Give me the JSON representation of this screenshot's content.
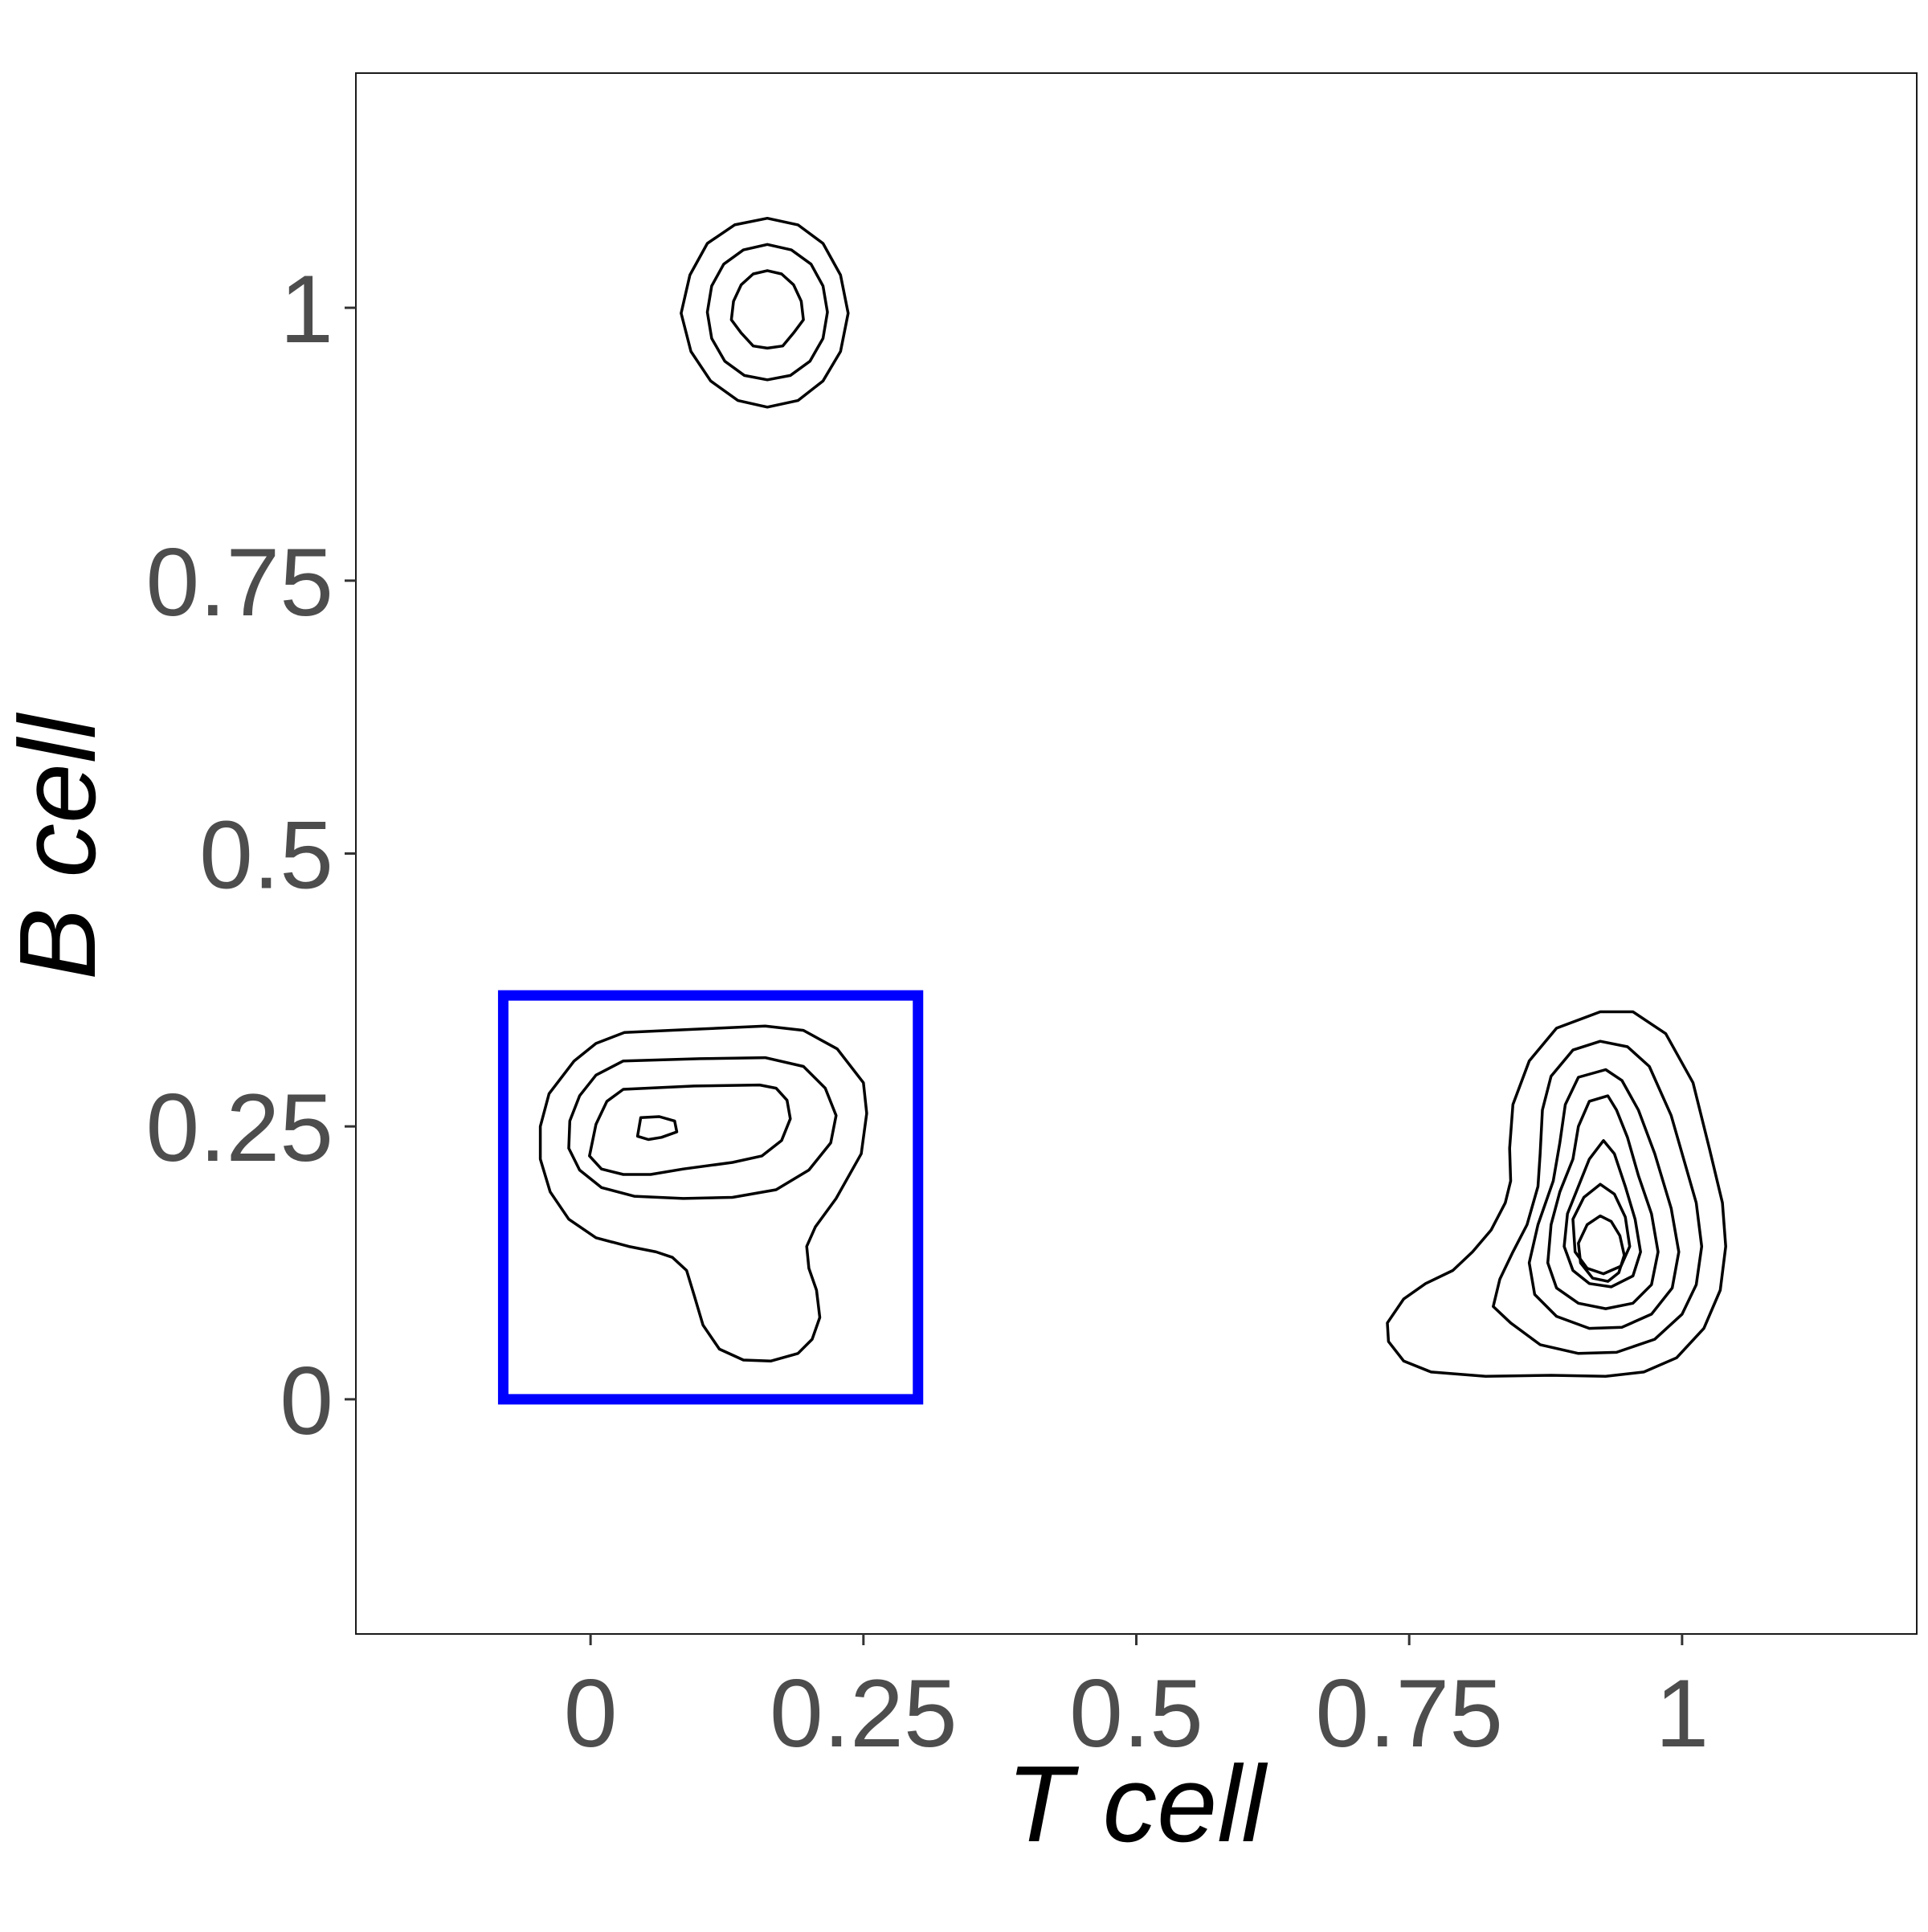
{
  "chart_data": {
    "type": "contour",
    "xlabel": "T cell",
    "ylabel": "B cell",
    "xlim": [
      -0.215,
      1.215
    ],
    "ylim": [
      -0.215,
      1.215
    ],
    "x_ticks": [
      {
        "value": 0,
        "label": "0"
      },
      {
        "value": 0.25,
        "label": "0.25"
      },
      {
        "value": 0.5,
        "label": "0.5"
      },
      {
        "value": 0.75,
        "label": "0.75"
      },
      {
        "value": 1,
        "label": "1"
      }
    ],
    "y_ticks": [
      {
        "value": 0,
        "label": "0"
      },
      {
        "value": 0.25,
        "label": "0.25"
      },
      {
        "value": 0.5,
        "label": "0.5"
      },
      {
        "value": 0.75,
        "label": "0.75"
      },
      {
        "value": 1,
        "label": "1"
      }
    ],
    "grid": false,
    "colors": {
      "contour": "#000000",
      "gate": "#0000ff",
      "tick_text": "#4d4d4d"
    },
    "gate": {
      "x": [
        -0.08,
        0.3
      ],
      "y": [
        0,
        0.37
      ]
    },
    "clusters": [
      {
        "id": "top",
        "contours": [
          [
            [
              0.162,
              1.082
            ],
            [
              0.132,
              1.076
            ],
            [
              0.107,
              1.059
            ],
            [
              0.091,
              1.03
            ],
            [
              0.083,
              0.995
            ],
            [
              0.092,
              0.96
            ],
            [
              0.11,
              0.933
            ],
            [
              0.135,
              0.915
            ],
            [
              0.162,
              0.909
            ],
            [
              0.19,
              0.915
            ],
            [
              0.213,
              0.933
            ],
            [
              0.229,
              0.96
            ],
            [
              0.236,
              0.995
            ],
            [
              0.229,
              1.03
            ],
            [
              0.213,
              1.059
            ],
            [
              0.19,
              1.076
            ],
            [
              0.162,
              1.082
            ]
          ],
          [
            [
              0.162,
              1.058
            ],
            [
              0.14,
              1.053
            ],
            [
              0.122,
              1.04
            ],
            [
              0.111,
              1.02
            ],
            [
              0.107,
              0.996
            ],
            [
              0.111,
              0.972
            ],
            [
              0.123,
              0.951
            ],
            [
              0.141,
              0.938
            ],
            [
              0.162,
              0.934
            ],
            [
              0.183,
              0.938
            ],
            [
              0.201,
              0.951
            ],
            [
              0.213,
              0.972
            ],
            [
              0.217,
              0.996
            ],
            [
              0.213,
              1.02
            ],
            [
              0.202,
              1.04
            ],
            [
              0.184,
              1.053
            ],
            [
              0.162,
              1.058
            ]
          ],
          [
            [
              0.162,
              1.034
            ],
            [
              0.149,
              1.031
            ],
            [
              0.138,
              1.021
            ],
            [
              0.131,
              1.006
            ],
            [
              0.129,
              0.989
            ],
            [
              0.138,
              0.977
            ],
            [
              0.149,
              0.965
            ],
            [
              0.162,
              0.963
            ],
            [
              0.176,
              0.965
            ],
            [
              0.186,
              0.977
            ],
            [
              0.195,
              0.989
            ],
            [
              0.193,
              1.006
            ],
            [
              0.186,
              1.021
            ],
            [
              0.175,
              1.031
            ],
            [
              0.162,
              1.034
            ]
          ]
        ]
      },
      {
        "id": "gated",
        "contours": [
          [
            [
              0.031,
              0.336
            ],
            [
              0.095,
              0.339
            ],
            [
              0.16,
              0.342
            ],
            [
              0.195,
              0.338
            ],
            [
              0.226,
              0.321
            ],
            [
              0.25,
              0.29
            ],
            [
              0.253,
              0.262
            ],
            [
              0.248,
              0.225
            ],
            [
              0.225,
              0.184
            ],
            [
              0.206,
              0.158
            ],
            [
              0.198,
              0.14
            ],
            [
              0.2,
              0.12
            ],
            [
              0.207,
              0.1
            ],
            [
              0.21,
              0.075
            ],
            [
              0.203,
              0.055
            ],
            [
              0.19,
              0.042
            ],
            [
              0.165,
              0.035
            ],
            [
              0.14,
              0.036
            ],
            [
              0.118,
              0.046
            ],
            [
              0.103,
              0.068
            ],
            [
              0.095,
              0.095
            ],
            [
              0.088,
              0.118
            ],
            [
              0.075,
              0.13
            ],
            [
              0.06,
              0.135
            ],
            [
              0.035,
              0.14
            ],
            [
              0.005,
              0.148
            ],
            [
              -0.02,
              0.165
            ],
            [
              -0.037,
              0.19
            ],
            [
              -0.046,
              0.22
            ],
            [
              -0.046,
              0.25
            ],
            [
              -0.038,
              0.28
            ],
            [
              -0.015,
              0.31
            ],
            [
              0.005,
              0.326
            ],
            [
              0.031,
              0.336
            ]
          ],
          [
            [
              0.03,
              0.31
            ],
            [
              0.1,
              0.312
            ],
            [
              0.16,
              0.313
            ],
            [
              0.195,
              0.305
            ],
            [
              0.215,
              0.285
            ],
            [
              0.225,
              0.26
            ],
            [
              0.22,
              0.235
            ],
            [
              0.2,
              0.21
            ],
            [
              0.17,
              0.192
            ],
            [
              0.13,
              0.185
            ],
            [
              0.085,
              0.184
            ],
            [
              0.04,
              0.186
            ],
            [
              0.01,
              0.194
            ],
            [
              -0.01,
              0.21
            ],
            [
              -0.02,
              0.23
            ],
            [
              -0.019,
              0.255
            ],
            [
              -0.01,
              0.278
            ],
            [
              0.005,
              0.297
            ],
            [
              0.03,
              0.31
            ]
          ],
          [
            [
              0.03,
              0.284
            ],
            [
              0.095,
              0.287
            ],
            [
              0.155,
              0.288
            ],
            [
              0.17,
              0.285
            ],
            [
              0.18,
              0.274
            ],
            [
              0.183,
              0.257
            ],
            [
              0.175,
              0.237
            ],
            [
              0.157,
              0.223
            ],
            [
              0.13,
              0.217
            ],
            [
              0.085,
              0.211
            ],
            [
              0.055,
              0.206
            ],
            [
              0.03,
              0.206
            ],
            [
              0.01,
              0.211
            ],
            [
              -0.001,
              0.223
            ],
            [
              0.005,
              0.252
            ],
            [
              0.015,
              0.273
            ],
            [
              0.03,
              0.284
            ]
          ],
          [
            [
              0.046,
              0.258
            ],
            [
              0.063,
              0.259
            ],
            [
              0.077,
              0.255
            ],
            [
              0.079,
              0.245
            ],
            [
              0.065,
              0.24
            ],
            [
              0.053,
              0.238
            ],
            [
              0.043,
              0.241
            ],
            [
              0.046,
              0.258
            ]
          ]
        ]
      },
      {
        "id": "right",
        "contours": [
          [
            [
              0.925,
              0.355
            ],
            [
              0.885,
              0.34
            ],
            [
              0.86,
              0.31
            ],
            [
              0.845,
              0.27
            ],
            [
              0.842,
              0.23
            ],
            [
              0.843,
              0.2
            ],
            [
              0.838,
              0.18
            ],
            [
              0.825,
              0.155
            ],
            [
              0.808,
              0.135
            ],
            [
              0.79,
              0.118
            ],
            [
              0.765,
              0.106
            ],
            [
              0.745,
              0.092
            ],
            [
              0.73,
              0.07
            ],
            [
              0.731,
              0.053
            ],
            [
              0.745,
              0.035
            ],
            [
              0.77,
              0.025
            ],
            [
              0.82,
              0.021
            ],
            [
              0.88,
              0.022
            ],
            [
              0.93,
              0.021
            ],
            [
              0.965,
              0.025
            ],
            [
              0.995,
              0.038
            ],
            [
              1.02,
              0.065
            ],
            [
              1.035,
              0.1
            ],
            [
              1.04,
              0.14
            ],
            [
              1.037,
              0.18
            ],
            [
              1.025,
              0.23
            ],
            [
              1.01,
              0.29
            ],
            [
              0.985,
              0.335
            ],
            [
              0.955,
              0.355
            ],
            [
              0.925,
              0.355
            ]
          ],
          [
            [
              0.925,
              0.328
            ],
            [
              0.9,
              0.32
            ],
            [
              0.88,
              0.296
            ],
            [
              0.872,
              0.265
            ],
            [
              0.87,
              0.225
            ],
            [
              0.868,
              0.195
            ],
            [
              0.858,
              0.16
            ],
            [
              0.845,
              0.135
            ],
            [
              0.833,
              0.11
            ],
            [
              0.827,
              0.085
            ],
            [
              0.843,
              0.07
            ],
            [
              0.87,
              0.05
            ],
            [
              0.905,
              0.042
            ],
            [
              0.94,
              0.043
            ],
            [
              0.975,
              0.055
            ],
            [
              1.0,
              0.078
            ],
            [
              1.013,
              0.105
            ],
            [
              1.018,
              0.14
            ],
            [
              1.013,
              0.18
            ],
            [
              0.99,
              0.26
            ],
            [
              0.97,
              0.305
            ],
            [
              0.95,
              0.323
            ],
            [
              0.925,
              0.328
            ]
          ],
          [
            [
              0.93,
              0.302
            ],
            [
              0.905,
              0.295
            ],
            [
              0.893,
              0.27
            ],
            [
              0.888,
              0.235
            ],
            [
              0.882,
              0.2
            ],
            [
              0.868,
              0.16
            ],
            [
              0.86,
              0.125
            ],
            [
              0.865,
              0.096
            ],
            [
              0.885,
              0.076
            ],
            [
              0.915,
              0.065
            ],
            [
              0.945,
              0.066
            ],
            [
              0.972,
              0.078
            ],
            [
              0.991,
              0.102
            ],
            [
              0.997,
              0.135
            ],
            [
              0.99,
              0.175
            ],
            [
              0.975,
              0.225
            ],
            [
              0.96,
              0.265
            ],
            [
              0.945,
              0.292
            ],
            [
              0.93,
              0.302
            ]
          ],
          [
            [
              0.932,
              0.278
            ],
            [
              0.915,
              0.273
            ],
            [
              0.905,
              0.25
            ],
            [
              0.9,
              0.22
            ],
            [
              0.888,
              0.19
            ],
            [
              0.88,
              0.16
            ],
            [
              0.877,
              0.125
            ],
            [
              0.885,
              0.102
            ],
            [
              0.905,
              0.088
            ],
            [
              0.93,
              0.083
            ],
            [
              0.955,
              0.088
            ],
            [
              0.972,
              0.105
            ],
            [
              0.978,
              0.135
            ],
            [
              0.972,
              0.17
            ],
            [
              0.96,
              0.205
            ],
            [
              0.95,
              0.24
            ],
            [
              0.94,
              0.265
            ],
            [
              0.932,
              0.278
            ]
          ],
          [
            [
              0.928,
              0.237
            ],
            [
              0.915,
              0.22
            ],
            [
              0.905,
              0.195
            ],
            [
              0.895,
              0.17
            ],
            [
              0.892,
              0.14
            ],
            [
              0.9,
              0.118
            ],
            [
              0.915,
              0.106
            ],
            [
              0.935,
              0.103
            ],
            [
              0.955,
              0.113
            ],
            [
              0.962,
              0.135
            ],
            [
              0.957,
              0.165
            ],
            [
              0.948,
              0.195
            ],
            [
              0.938,
              0.225
            ],
            [
              0.928,
              0.237
            ]
          ],
          [
            [
              0.925,
              0.197
            ],
            [
              0.91,
              0.185
            ],
            [
              0.9,
              0.165
            ],
            [
              0.902,
              0.135
            ],
            [
              0.913,
              0.12
            ],
            [
              0.928,
              0.115
            ],
            [
              0.944,
              0.122
            ],
            [
              0.952,
              0.14
            ],
            [
              0.948,
              0.167
            ],
            [
              0.938,
              0.188
            ],
            [
              0.925,
              0.197
            ]
          ],
          [
            [
              0.925,
              0.168
            ],
            [
              0.913,
              0.16
            ],
            [
              0.905,
              0.143
            ],
            [
              0.907,
              0.125
            ],
            [
              0.918,
              0.111
            ],
            [
              0.932,
              0.108
            ],
            [
              0.942,
              0.116
            ],
            [
              0.947,
              0.132
            ],
            [
              0.943,
              0.15
            ],
            [
              0.935,
              0.163
            ],
            [
              0.925,
              0.168
            ]
          ]
        ]
      }
    ]
  }
}
